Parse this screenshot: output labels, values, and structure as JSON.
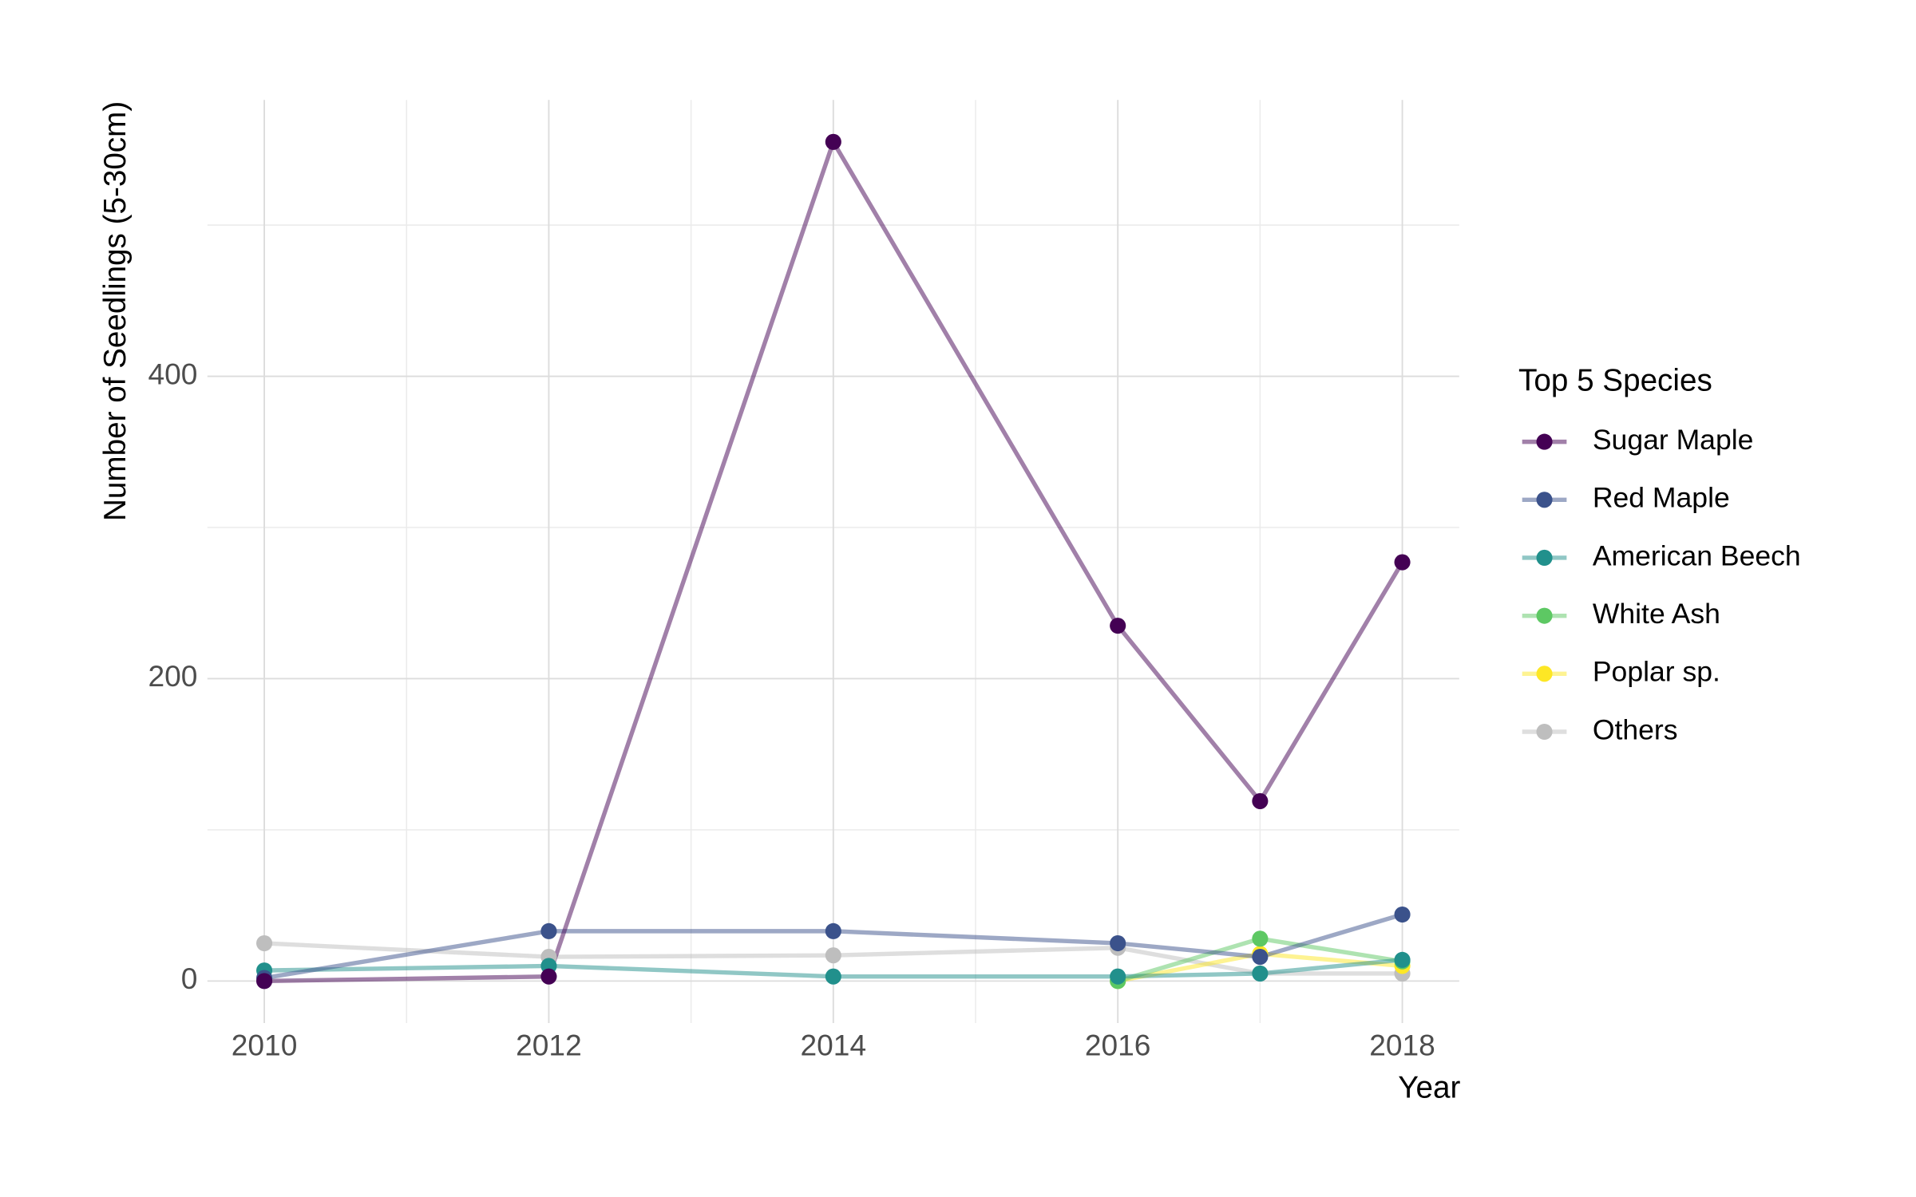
{
  "chart_data": {
    "type": "line",
    "x_label": "Year",
    "y_label": "Number of Seedlings (5-30cm)",
    "legend_title": "Top 5 Species",
    "legend": "right",
    "x": [
      2010,
      2012,
      2014,
      2016,
      2017,
      2018
    ],
    "series": [
      {
        "name": "Sugar Maple",
        "color": "#440154",
        "values": [
          0,
          3,
          555,
          235,
          119,
          277
        ]
      },
      {
        "name": "Red Maple",
        "color": "#3b528b",
        "values": [
          2,
          33,
          33,
          25,
          16,
          44
        ]
      },
      {
        "name": "American Beech",
        "color": "#21908c",
        "values": [
          7,
          10,
          3,
          3,
          5,
          14
        ]
      },
      {
        "name": "White Ash",
        "color": "#5dc863",
        "values": [
          null,
          null,
          null,
          0,
          28,
          13
        ]
      },
      {
        "name": "Poplar sp.",
        "color": "#fde725",
        "values": [
          null,
          null,
          null,
          0,
          18,
          10
        ]
      },
      {
        "name": "Others",
        "color": "#bebebe",
        "values": [
          25,
          16,
          17,
          22,
          5,
          5
        ]
      }
    ],
    "xlim": [
      2009.6,
      2018.4
    ],
    "xticks": [
      2010,
      2012,
      2014,
      2016,
      2018
    ],
    "xminorticks": [
      2011,
      2013,
      2015,
      2017
    ],
    "ylim": [
      -27.75,
      582.75
    ],
    "yticks": [
      0,
      200,
      400
    ],
    "yminorticks": [
      100,
      300,
      500
    ],
    "grid": true
  }
}
